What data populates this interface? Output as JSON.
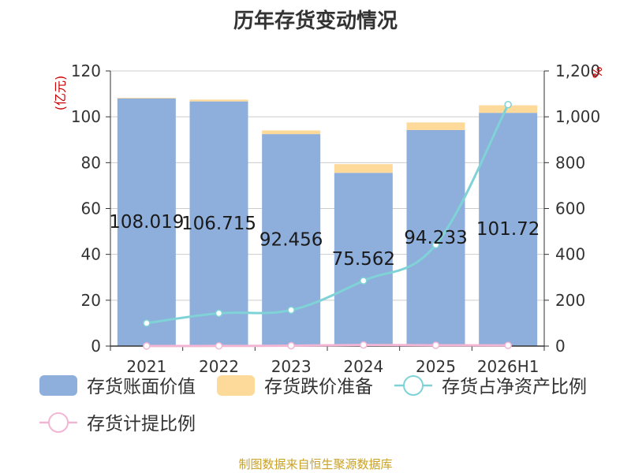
{
  "title": "历年存货变动情况",
  "source": "制图数据来自恒生聚源数据库",
  "colors": {
    "book_value": "#8eaedb",
    "impairment": "#fdd99a",
    "ratio_net_assets": "#7fd3d6",
    "provision_ratio": "#f2b6d4",
    "axis_unit": "#cc0000",
    "grid": "#cccccc"
  },
  "chart_data": {
    "type": "bar",
    "title": "历年存货变动情况",
    "categories": [
      "2021",
      "2022",
      "2023",
      "2024",
      "2025",
      "2026H1"
    ],
    "left_axis": {
      "unit": "(亿元)",
      "ylim": [
        0,
        120
      ],
      "ticks": [
        "0",
        "20",
        "40",
        "60",
        "80",
        "100",
        "120"
      ]
    },
    "right_axis": {
      "unit": "%",
      "ylim": [
        0,
        1200
      ],
      "ticks": [
        "0",
        "200",
        "400",
        "600",
        "800",
        "1,000",
        "1,200"
      ]
    },
    "grid": true,
    "legend_position": "bottom",
    "series": [
      {
        "name": "存货账面价值",
        "type": "bar",
        "axis": "left",
        "stack": "inventory",
        "values": [
          108.019,
          106.715,
          92.456,
          75.562,
          94.233,
          101.72
        ],
        "labels": [
          "108.019",
          "106.715",
          "92.456",
          "75.562",
          "94.233",
          "101.72"
        ]
      },
      {
        "name": "存货跌价准备",
        "type": "bar",
        "axis": "left",
        "stack": "inventory",
        "values": [
          0.3,
          0.8,
          1.6,
          3.8,
          3.3,
          3.3
        ]
      },
      {
        "name": "存货占净资产比例",
        "type": "line",
        "axis": "right",
        "values": [
          100,
          143,
          157,
          285,
          442,
          1053
        ]
      },
      {
        "name": "存货计提比例",
        "type": "line",
        "axis": "right",
        "values": [
          0.3,
          0.7,
          1.7,
          4.8,
          3.4,
          3.1
        ]
      }
    ]
  }
}
